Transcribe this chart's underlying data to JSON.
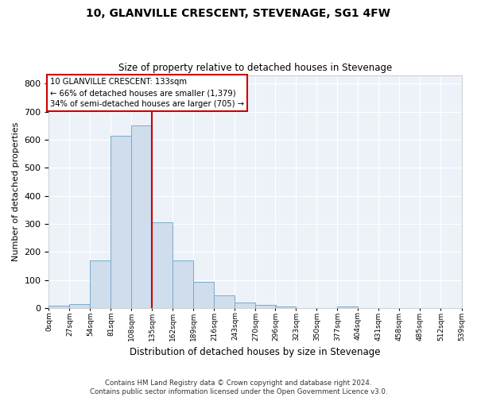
{
  "title": "10, GLANVILLE CRESCENT, STEVENAGE, SG1 4FW",
  "subtitle": "Size of property relative to detached houses in Stevenage",
  "xlabel": "Distribution of detached houses by size in Stevenage",
  "ylabel": "Number of detached properties",
  "property_label": "10 GLANVILLE CRESCENT: 133sqm",
  "annotation_line1": "← 66% of detached houses are smaller (1,379)",
  "annotation_line2": "34% of semi-detached houses are larger (705) →",
  "bin_edges": [
    0,
    27,
    54,
    81,
    108,
    135,
    162,
    189,
    216,
    243,
    270,
    296,
    323,
    350,
    377,
    404,
    431,
    458,
    485,
    512,
    539
  ],
  "bin_labels": [
    "0sqm",
    "27sqm",
    "54sqm",
    "81sqm",
    "108sqm",
    "135sqm",
    "162sqm",
    "189sqm",
    "216sqm",
    "243sqm",
    "270sqm",
    "296sqm",
    "323sqm",
    "350sqm",
    "377sqm",
    "404sqm",
    "431sqm",
    "458sqm",
    "485sqm",
    "512sqm",
    "539sqm"
  ],
  "bar_heights": [
    8,
    15,
    170,
    615,
    650,
    305,
    170,
    95,
    45,
    20,
    12,
    5,
    0,
    0,
    7,
    0,
    0,
    0,
    0,
    0
  ],
  "bar_color": "#cfdded",
  "bar_edge_color": "#7aaaca",
  "vline_x": 135,
  "vline_color": "#cc0000",
  "annotation_box_color": "#cc0000",
  "background_color": "#edf2f9",
  "grid_color": "#ffffff",
  "ylim": [
    0,
    830
  ],
  "yticks": [
    0,
    100,
    200,
    300,
    400,
    500,
    600,
    700,
    800
  ],
  "footer_line1": "Contains HM Land Registry data © Crown copyright and database right 2024.",
  "footer_line2": "Contains public sector information licensed under the Open Government Licence v3.0."
}
